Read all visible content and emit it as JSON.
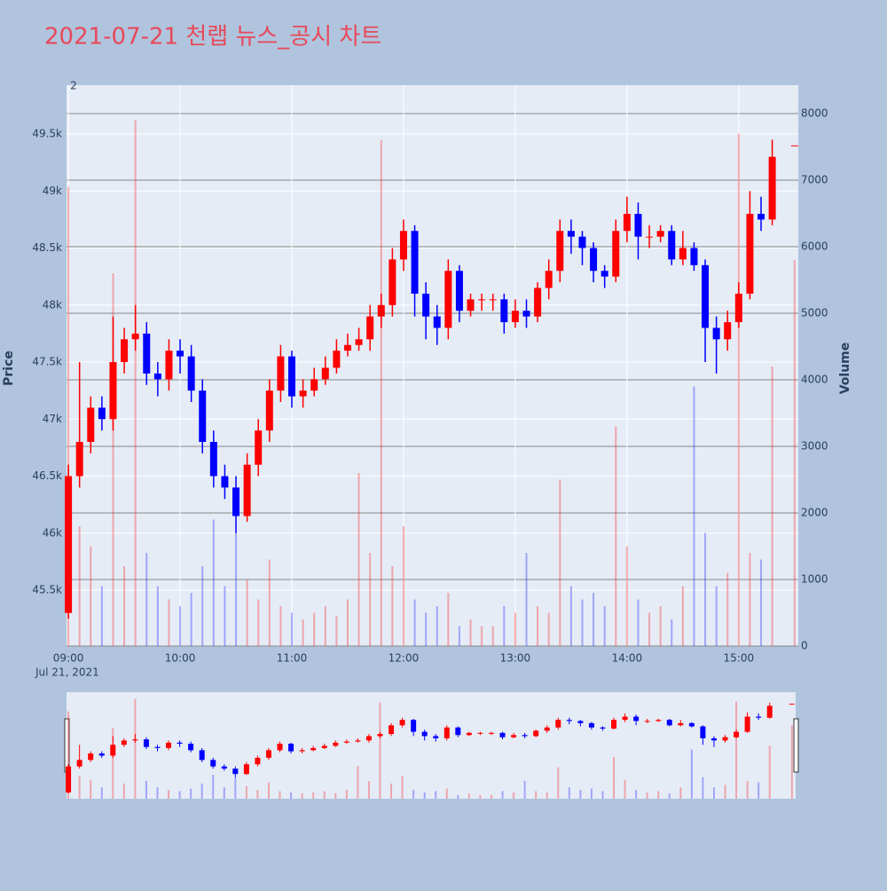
{
  "chart_data": {
    "type": "candlestick",
    "title": "2021-07-21 천랩 뉴스_공시 차트",
    "ylabel": "Price",
    "y2label": "Volume",
    "annotation": "2",
    "x_date_label": "Jul 21, 2021",
    "increasing_color": "#ff0000",
    "decreasing_color": "#0000ff",
    "rangeslider": true,
    "x": [
      "09:00",
      "09:06",
      "09:12",
      "09:18",
      "09:24",
      "09:30",
      "09:36",
      "09:42",
      "09:48",
      "09:54",
      "10:00",
      "10:06",
      "10:12",
      "10:18",
      "10:24",
      "10:30",
      "10:36",
      "10:42",
      "10:48",
      "10:54",
      "11:00",
      "11:06",
      "11:12",
      "11:18",
      "11:24",
      "11:30",
      "11:36",
      "11:42",
      "11:48",
      "11:54",
      "12:00",
      "12:06",
      "12:12",
      "12:18",
      "12:24",
      "12:30",
      "12:36",
      "12:42",
      "12:48",
      "12:54",
      "13:00",
      "13:06",
      "13:12",
      "13:18",
      "13:24",
      "13:30",
      "13:36",
      "13:42",
      "13:48",
      "13:54",
      "14:00",
      "14:06",
      "14:12",
      "14:18",
      "14:24",
      "14:30",
      "14:36",
      "14:42",
      "14:48",
      "14:54",
      "15:00",
      "15:06",
      "15:12",
      "15:18",
      "15:30"
    ],
    "open": [
      45300,
      46500,
      46800,
      47100,
      47000,
      47500,
      47700,
      47750,
      47400,
      47350,
      47600,
      47550,
      47250,
      46800,
      46500,
      46400,
      46150,
      46600,
      46900,
      47250,
      47550,
      47200,
      47250,
      47350,
      47450,
      47600,
      47650,
      47700,
      47900,
      48000,
      48400,
      48650,
      48100,
      47900,
      47800,
      48300,
      47950,
      48050,
      48050,
      48050,
      47850,
      47950,
      47900,
      48150,
      48300,
      48650,
      48600,
      48500,
      48300,
      48250,
      48650,
      48800,
      48600,
      48600,
      48650,
      48400,
      48500,
      48350,
      47800,
      47700,
      47850,
      48100,
      48800,
      48750,
      49400
    ],
    "high": [
      46600,
      47500,
      47200,
      47200,
      47900,
      47800,
      48000,
      47850,
      47500,
      47700,
      47700,
      47650,
      47350,
      46900,
      46600,
      46500,
      46700,
      47000,
      47350,
      47650,
      47600,
      47350,
      47450,
      47550,
      47700,
      47750,
      47800,
      48000,
      48100,
      48500,
      48750,
      48700,
      48200,
      48000,
      48400,
      48350,
      48100,
      48100,
      48100,
      48100,
      48050,
      48050,
      48200,
      48400,
      48750,
      48750,
      48650,
      48550,
      48350,
      48750,
      48950,
      48900,
      48700,
      48700,
      48700,
      48650,
      48550,
      48400,
      47900,
      47950,
      48200,
      49000,
      48950,
      49450,
      49400
    ],
    "low": [
      45250,
      46400,
      46700,
      46900,
      46900,
      47400,
      47600,
      47300,
      47200,
      47250,
      47400,
      47150,
      46700,
      46400,
      46300,
      46000,
      46100,
      46500,
      46800,
      47150,
      47100,
      47100,
      47200,
      47300,
      47400,
      47550,
      47600,
      47600,
      47800,
      47900,
      48300,
      47900,
      47700,
      47650,
      47700,
      47850,
      47900,
      47950,
      47950,
      47750,
      47800,
      47800,
      47850,
      48050,
      48200,
      48450,
      48350,
      48200,
      48150,
      48200,
      48550,
      48400,
      48500,
      48550,
      48350,
      48350,
      48300,
      47500,
      47400,
      47600,
      47800,
      48050,
      48650,
      48700,
      49400
    ],
    "close": [
      46500,
      46800,
      47100,
      47000,
      47500,
      47700,
      47750,
      47400,
      47350,
      47600,
      47550,
      47250,
      46800,
      46500,
      46400,
      46150,
      46600,
      46900,
      47250,
      47550,
      47200,
      47250,
      47350,
      47450,
      47600,
      47650,
      47700,
      47900,
      48000,
      48400,
      48650,
      48100,
      47900,
      47800,
      48300,
      47950,
      48050,
      48050,
      48050,
      47850,
      47950,
      47900,
      48150,
      48300,
      48650,
      48600,
      48500,
      48300,
      48250,
      48650,
      48800,
      48600,
      48600,
      48650,
      48400,
      48500,
      48350,
      47800,
      47700,
      47850,
      48100,
      48800,
      48750,
      49300,
      49400
    ],
    "volume": [
      6900,
      1800,
      1500,
      900,
      5600,
      1200,
      7900,
      1400,
      900,
      700,
      600,
      800,
      1200,
      1900,
      900,
      1700,
      1000,
      700,
      1300,
      600,
      500,
      400,
      500,
      600,
      450,
      700,
      2600,
      1400,
      7600,
      1200,
      1800,
      700,
      500,
      600,
      800,
      300,
      400,
      300,
      300,
      600,
      500,
      1400,
      600,
      500,
      2500,
      900,
      700,
      800,
      600,
      3300,
      1500,
      700,
      500,
      600,
      400,
      900,
      3900,
      1700,
      900,
      1100,
      7700,
      1400,
      1300,
      4200,
      5800
    ],
    "xlim": [
      "08:59",
      "15:32"
    ],
    "xticks": [
      "09:00",
      "10:00",
      "11:00",
      "12:00",
      "13:00",
      "14:00",
      "15:00"
    ],
    "ylim": [
      45010,
      49928
    ],
    "yticks": [
      {
        "value": 45500,
        "label": "45.5k"
      },
      {
        "value": 46000,
        "label": "46k"
      },
      {
        "value": 46500,
        "label": "46.5k"
      },
      {
        "value": 47000,
        "label": "47k"
      },
      {
        "value": 47500,
        "label": "47.5k"
      },
      {
        "value": 48000,
        "label": "48k"
      },
      {
        "value": 48500,
        "label": "48.5k"
      },
      {
        "value": 49000,
        "label": "49k"
      },
      {
        "value": 49500,
        "label": "49.5k"
      }
    ],
    "y2lim": [
      0,
      8427
    ],
    "y2ticks": [
      0,
      1000,
      2000,
      3000,
      4000,
      5000,
      6000,
      7000,
      8000
    ]
  }
}
